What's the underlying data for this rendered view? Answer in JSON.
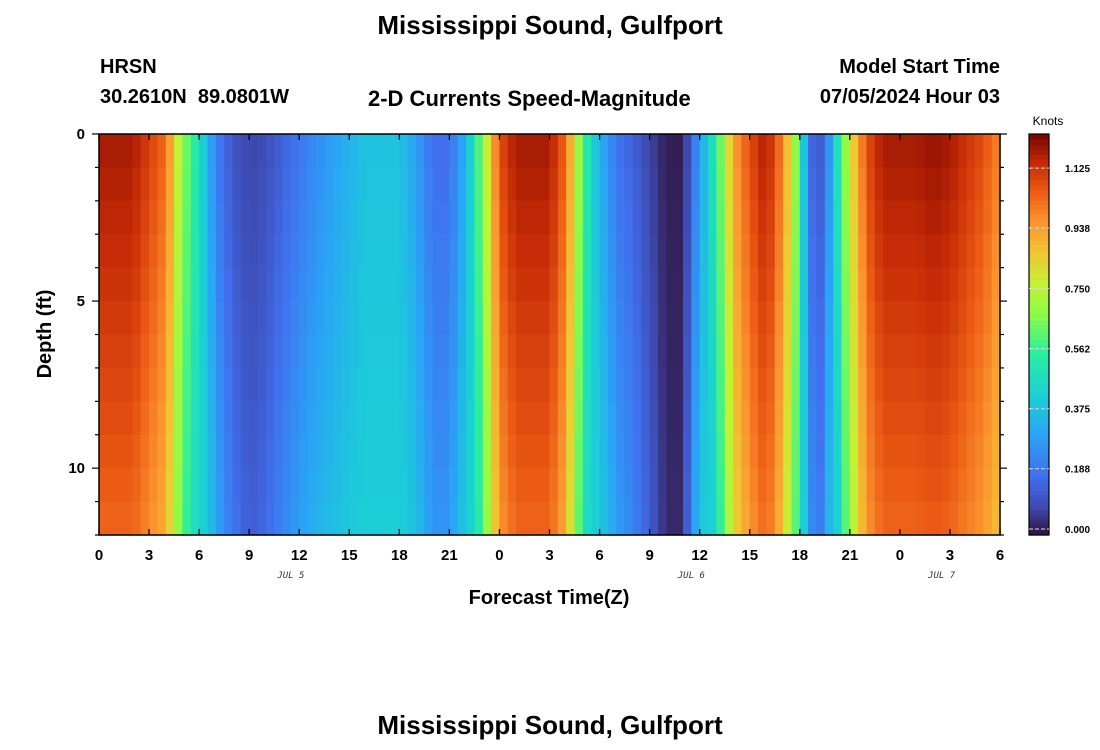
{
  "header": {
    "title": "Mississippi Sound, Gulfport",
    "station_id": "HRSN",
    "coords": "30.2610N  89.0801W",
    "subtitle": "2-D Currents Speed-Magnitude",
    "model_label": "Model Start Time",
    "model_time": "07/05/2024 Hour 03"
  },
  "footer": {
    "title": "Mississippi Sound, Gulfport"
  },
  "chart_data": {
    "type": "heatmap",
    "xlabel": "Forecast Time(Z)",
    "ylabel": "Depth (ft)",
    "x_range_hours": [
      0,
      54
    ],
    "y_range_ft": [
      0,
      12
    ],
    "x_tick_labels": [
      "0",
      "3",
      "6",
      "9",
      "12",
      "15",
      "18",
      "21",
      "0",
      "3",
      "6",
      "9",
      "12",
      "15",
      "18",
      "21",
      "0",
      "3",
      "6"
    ],
    "y_ticks": [
      0,
      5,
      10
    ],
    "day_labels": [
      {
        "label": "JUL 5",
        "hour": 11.5
      },
      {
        "label": "JUL 6",
        "hour": 35.5
      },
      {
        "label": "JUL 7",
        "hour": 50.5
      }
    ],
    "colorbar": {
      "units": "Knots",
      "min": 0,
      "max": 1.25,
      "tick_values": [
        0.0,
        0.188,
        0.375,
        0.562,
        0.75,
        0.938,
        1.125
      ],
      "tick_labels": [
        "0.000",
        "0.188",
        "0.375",
        "0.562",
        "0.750",
        "0.938",
        "1.125"
      ]
    },
    "surface_speed_profile_knots": {
      "hours": [
        0,
        2,
        4,
        5,
        6,
        7,
        8,
        9,
        10,
        12,
        14,
        16,
        18,
        19,
        20,
        21,
        22,
        23,
        24,
        25,
        26,
        27,
        28,
        29,
        30,
        31,
        32,
        33,
        34,
        35,
        35.5,
        36,
        37,
        38,
        39,
        40,
        41,
        42,
        42.5,
        43,
        43.5,
        44,
        45,
        46,
        47,
        48,
        49,
        50,
        51,
        52,
        53,
        54
      ],
      "values": [
        1.2,
        1.2,
        1.05,
        0.7,
        0.5,
        0.22,
        0.12,
        0.08,
        0.1,
        0.2,
        0.3,
        0.4,
        0.4,
        0.3,
        0.18,
        0.18,
        0.35,
        0.7,
        1.1,
        1.2,
        1.2,
        1.2,
        1.05,
        0.6,
        0.35,
        0.2,
        0.15,
        0.08,
        0.02,
        0.02,
        0.15,
        0.3,
        0.55,
        0.95,
        1.1,
        1.2,
        1.0,
        0.6,
        0.2,
        0.12,
        0.15,
        0.4,
        0.8,
        1.1,
        1.2,
        1.2,
        1.2,
        1.22,
        1.2,
        1.15,
        1.1,
        1.0
      ]
    },
    "depth_attenuation": "speed decreases with depth; peaks narrow near bottom"
  }
}
